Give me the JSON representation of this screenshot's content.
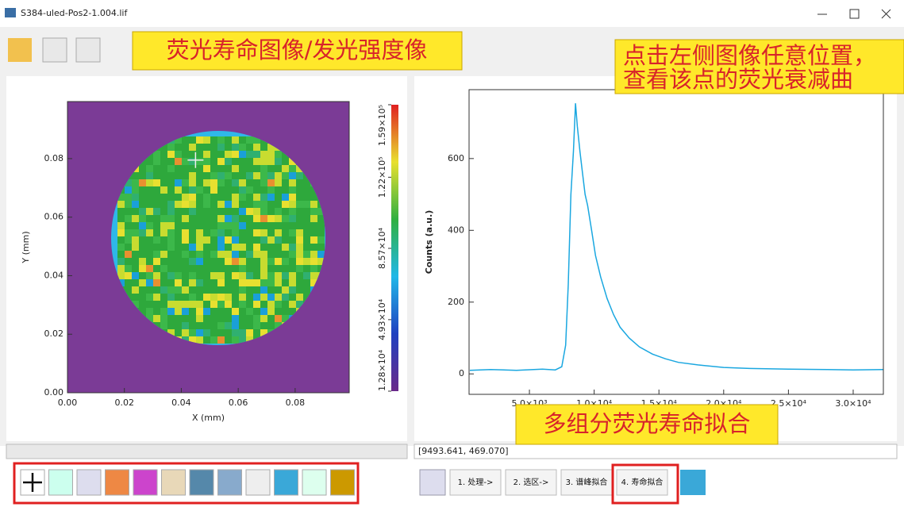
{
  "window": {
    "title": "S384-uled-Pos2-1.004.lif"
  },
  "annotations": {
    "top_left": "荧光寿命图像/发光强度像",
    "top_right": [
      "点击左侧图像任意位置，",
      "查看该点的荧光衰减曲"
    ],
    "bottom": "多组分荧光寿命拟合"
  },
  "status_text": "[9493.641, 469.070]",
  "buttons": [
    "1. 处理->",
    "2. 选区->",
    "3. 谱峰拟合",
    "4. 寿命拟合"
  ],
  "chart_data": [
    {
      "type": "heatmap",
      "xlabel": "X (mm)",
      "ylabel": "Y (mm)",
      "xlim": [
        0,
        0.099
      ],
      "ylim": [
        0,
        0.0995
      ],
      "xticks": [
        {
          "value": 0,
          "label": "0.00"
        },
        0.02,
        0.04,
        0.06,
        0.08
      ],
      "yticks": [
        {
          "value": 0,
          "label": "0.00"
        },
        0.02,
        0.04,
        0.06,
        0.08
      ],
      "colorbar": {
        "lim": [
          12800,
          159000
        ],
        "ticks": [
          {
            "value": 12800,
            "label": "1.28×10⁴"
          },
          {
            "value": 49300,
            "label": "4.93×10⁴"
          },
          {
            "value": 85700,
            "label": "8.57×10⁴"
          },
          {
            "value": 122000,
            "label": "1.22×10⁵"
          },
          {
            "value": 159000,
            "label": "1.59×10⁵"
          }
        ]
      },
      "cursor": [
        0.045,
        0.0795
      ]
    },
    {
      "type": "line",
      "ylabel": "Counts (a.u.)",
      "xlim": [
        340,
        32330
      ],
      "ylim": [
        -57,
        792
      ],
      "xticks": [
        {
          "value": 5000,
          "label": "5.0×10³"
        },
        {
          "value": 10000,
          "label": "1.0×10⁴"
        },
        {
          "value": 15000,
          "label": "1.5×10⁴"
        },
        {
          "value": 20000,
          "label": "2.0×10⁴"
        },
        {
          "value": 25000,
          "label": "2.5×10⁴"
        },
        {
          "value": 30000,
          "label": "3.0×10⁴"
        }
      ],
      "yticks": [
        0,
        200,
        400,
        600
      ],
      "x": [
        400,
        2000,
        4000,
        6000,
        7000,
        7500,
        7800,
        8000,
        8200,
        8400,
        8560,
        8700,
        8900,
        9100,
        9300,
        9494,
        9800,
        10100,
        10500,
        11000,
        11500,
        12000,
        12700,
        13500,
        14500,
        15500,
        16500,
        18000,
        20000,
        22000,
        25000,
        28000,
        30000,
        32300
      ],
      "series": [
        {
          "color": "#1aa7e0",
          "values": [
            10,
            12,
            10,
            13,
            11,
            20,
            80,
            250,
            500,
            620,
            754,
            690,
            620,
            560,
            500,
            469,
            400,
            330,
            270,
            210,
            165,
            130,
            100,
            75,
            55,
            42,
            32,
            25,
            18,
            15,
            13,
            12,
            11,
            12
          ]
        }
      ]
    }
  ]
}
